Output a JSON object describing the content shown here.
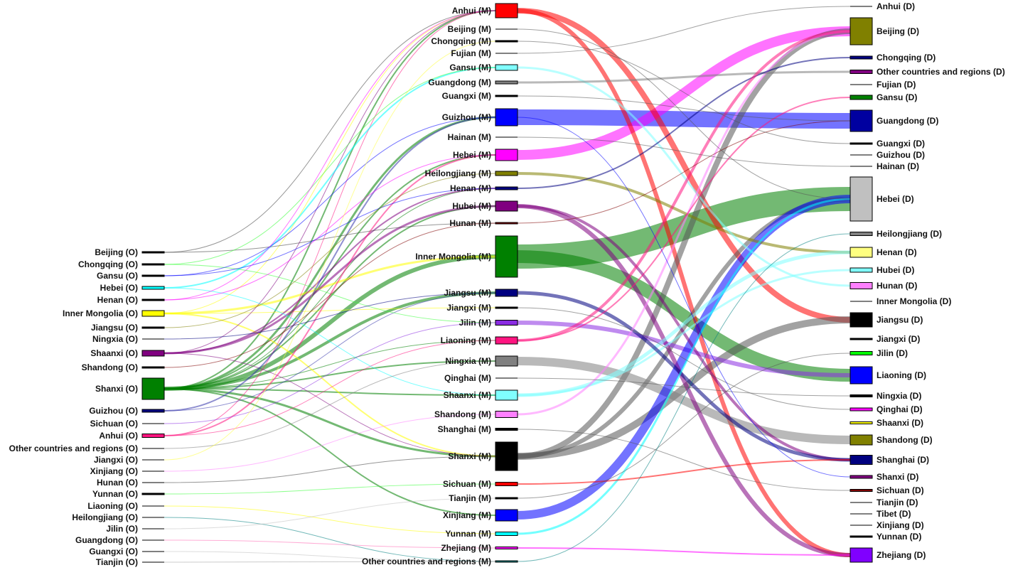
{
  "chart_data": {
    "type": "sankey",
    "title": "",
    "columns": [
      "origin",
      "middle",
      "destination"
    ],
    "origin_nodes": [
      {
        "name": "Beijing (O)",
        "color": "#000000",
        "link_color": "#404040",
        "value": 2
      },
      {
        "name": "Chongqing (O)",
        "color": "#000000",
        "link_color": "#33ff33",
        "value": 2
      },
      {
        "name": "Gansu (O)",
        "color": "#000000",
        "link_color": "#0000ff",
        "value": 2
      },
      {
        "name": "Hebei (O)",
        "color": "#00ffff",
        "link_color": "#00ffff",
        "value": 4
      },
      {
        "name": "Henan (O)",
        "color": "#000000",
        "link_color": "#ff00ff",
        "value": 2
      },
      {
        "name": "Inner Mongolia (O)",
        "color": "#ffff00",
        "link_color": "#ffff00",
        "value": 8
      },
      {
        "name": "Jiangsu (O)",
        "color": "#000000",
        "link_color": "#808000",
        "value": 2
      },
      {
        "name": "Ningxia (O)",
        "color": "#000000",
        "link_color": "#000080",
        "value": 1
      },
      {
        "name": "Shaanxi (O)",
        "color": "#800080",
        "link_color": "#800080",
        "value": 8
      },
      {
        "name": "Shandong (O)",
        "color": "#000000",
        "link_color": "#800000",
        "value": 2
      },
      {
        "name": "Shanxi (O)",
        "color": "#008000",
        "link_color": "#008000",
        "value": 30
      },
      {
        "name": "Guizhou (O)",
        "color": "#000080",
        "link_color": "#3333aa",
        "value": 4
      },
      {
        "name": "Sichuan (O)",
        "color": "#000000",
        "link_color": "#8a2be2",
        "value": 1
      },
      {
        "name": "Anhui (O)",
        "color": "#ff1480",
        "link_color": "#ff1480",
        "value": 5
      },
      {
        "name": "Other countries and regions (O)",
        "color": "#000000",
        "link_color": "#808080",
        "value": 1
      },
      {
        "name": "Jiangxi (O)",
        "color": "#000000",
        "link_color": "#ffff40",
        "value": 1
      },
      {
        "name": "Xinjiang (O)",
        "color": "#000000",
        "link_color": "#ff80ff",
        "value": 1
      },
      {
        "name": "Hunan (O)",
        "color": "#000000",
        "link_color": "#404040",
        "value": 1
      },
      {
        "name": "Yunnan (O)",
        "color": "#000000",
        "link_color": "#33ff33",
        "value": 2
      },
      {
        "name": "Liaoning (O)",
        "color": "#000000",
        "link_color": "#ffff00",
        "value": 1
      },
      {
        "name": "Heilongjiang (O)",
        "color": "#000000",
        "link_color": "#008080",
        "value": 1
      },
      {
        "name": "Jilin (O)",
        "color": "#000000",
        "link_color": "#c0c0c0",
        "value": 1
      },
      {
        "name": "Guangdong (O)",
        "color": "#000000",
        "link_color": "#ff69b4",
        "value": 1
      },
      {
        "name": "Guangxi (O)",
        "color": "#000000",
        "link_color": "#c0c0c0",
        "value": 1
      },
      {
        "name": "Tianjin (O)",
        "color": "#000000",
        "link_color": "#a0a0a0",
        "value": 1
      }
    ],
    "middle_nodes": [
      {
        "name": "Anhui (M)",
        "color": "#ff0000",
        "value": 20
      },
      {
        "name": "Beijing (M)",
        "color": "#000000",
        "value": 1
      },
      {
        "name": "Chongqing (M)",
        "color": "#000000",
        "value": 2
      },
      {
        "name": "Fujian (M)",
        "color": "#000000",
        "value": 1
      },
      {
        "name": "Gansu (M)",
        "color": "#80ffff",
        "value": 8
      },
      {
        "name": "Guangdong (M)",
        "color": "#808080",
        "value": 4
      },
      {
        "name": "Guangxi (M)",
        "color": "#000000",
        "value": 2
      },
      {
        "name": "Guizhou (M)",
        "color": "#0000ff",
        "value": 24
      },
      {
        "name": "Hainan (M)",
        "color": "#000000",
        "value": 1
      },
      {
        "name": "Hebei (M)",
        "color": "#ff00ff",
        "value": 16
      },
      {
        "name": "Heilongjiang (M)",
        "color": "#808000",
        "value": 6
      },
      {
        "name": "Henan (M)",
        "color": "#000080",
        "value": 4
      },
      {
        "name": "Hubei (M)",
        "color": "#800080",
        "value": 14
      },
      {
        "name": "Hunan (M)",
        "color": "#800000",
        "value": 2
      },
      {
        "name": "Inner Mongolia (M)",
        "color": "#008000",
        "value": 58
      },
      {
        "name": "Jiangsu (M)",
        "color": "#000080",
        "value": 10
      },
      {
        "name": "Jiangxi (M)",
        "color": "#000000",
        "value": 2
      },
      {
        "name": "Jilin (M)",
        "color": "#8a2be2",
        "value": 7
      },
      {
        "name": "Liaoning (M)",
        "color": "#ff1480",
        "value": 10
      },
      {
        "name": "Ningxia (M)",
        "color": "#808080",
        "value": 14
      },
      {
        "name": "Qinghai (M)",
        "color": "#000000",
        "value": 1
      },
      {
        "name": "Shaanxi (M)",
        "color": "#80ffff",
        "value": 14
      },
      {
        "name": "Shandong (M)",
        "color": "#ff80ff",
        "value": 9
      },
      {
        "name": "Shanghai (M)",
        "color": "#000000",
        "value": 3
      },
      {
        "name": "Shanxi (M)",
        "color": "#000000",
        "value": 40
      },
      {
        "name": "Sichuan (M)",
        "color": "#ff0000",
        "value": 5
      },
      {
        "name": "Tianjin (M)",
        "color": "#000000",
        "value": 2
      },
      {
        "name": "Xinjiang (M)",
        "color": "#0000ff",
        "value": 16
      },
      {
        "name": "Yunnan (M)",
        "color": "#00ffff",
        "value": 5
      },
      {
        "name": "Zhejiang (M)",
        "color": "#ff00ff",
        "value": 3
      },
      {
        "name": "Other countries and regions (M)",
        "color": "#008080",
        "value": 2
      }
    ],
    "destination_nodes": [
      {
        "name": "Anhui (D)",
        "color": "#000000",
        "value": 1
      },
      {
        "name": "Beijing (D)",
        "color": "#808000",
        "value": 38
      },
      {
        "name": "Chongqing (D)",
        "color": "#000080",
        "value": 4
      },
      {
        "name": "Other countries and regions (D)",
        "color": "#800080",
        "value": 5
      },
      {
        "name": "Fujian (D)",
        "color": "#000000",
        "value": 1
      },
      {
        "name": "Gansu (D)",
        "color": "#008000",
        "value": 6
      },
      {
        "name": "Guangdong (D)",
        "color": "#0000a0",
        "value": 30
      },
      {
        "name": "Guangxi (D)",
        "color": "#000000",
        "value": 2
      },
      {
        "name": "Guizhou (D)",
        "color": "#000000",
        "value": 1
      },
      {
        "name": "Hainan (D)",
        "color": "#000000",
        "value": 1
      },
      {
        "name": "Hebei (D)",
        "color": "#c0c0c0",
        "value": 62
      },
      {
        "name": "Heilongjiang (D)",
        "color": "#808080",
        "value": 5
      },
      {
        "name": "Henan (D)",
        "color": "#ffff80",
        "value": 14
      },
      {
        "name": "Hubei (D)",
        "color": "#80ffff",
        "value": 6
      },
      {
        "name": "Hunan (D)",
        "color": "#ff80ff",
        "value": 9
      },
      {
        "name": "Inner Mongolia (D)",
        "color": "#000000",
        "value": 1
      },
      {
        "name": "Jiangsu (D)",
        "color": "#000000",
        "value": 20
      },
      {
        "name": "Jiangxi (D)",
        "color": "#000000",
        "value": 2
      },
      {
        "name": "Jilin (D)",
        "color": "#00ff00",
        "value": 5
      },
      {
        "name": "Liaoning (D)",
        "color": "#0000ff",
        "value": 24
      },
      {
        "name": "Ningxia (D)",
        "color": "#000000",
        "value": 3
      },
      {
        "name": "Qinghai (D)",
        "color": "#ff00ff",
        "value": 4
      },
      {
        "name": "Shaanxi (D)",
        "color": "#ffff00",
        "value": 3
      },
      {
        "name": "Shandong (D)",
        "color": "#808000",
        "value": 14
      },
      {
        "name": "Shanghai (D)",
        "color": "#000080",
        "value": 13
      },
      {
        "name": "Shanxi (D)",
        "color": "#800080",
        "value": 4
      },
      {
        "name": "Sichuan (D)",
        "color": "#800000",
        "value": 3
      },
      {
        "name": "Tianjin (D)",
        "color": "#000000",
        "value": 1
      },
      {
        "name": "Tibet (D)",
        "color": "#000000",
        "value": 1
      },
      {
        "name": "Xinjiang (D)",
        "color": "#000000",
        "value": 1
      },
      {
        "name": "Yunnan (D)",
        "color": "#000000",
        "value": 2
      },
      {
        "name": "Zhejiang (D)",
        "color": "#8000ff",
        "value": 20
      }
    ],
    "links_om": [
      [
        "Shanxi (O)",
        "Inner Mongolia (M)",
        6
      ],
      [
        "Shanxi (O)",
        "Jiangsu (M)",
        4
      ],
      [
        "Shanxi (O)",
        "Shanxi (M)",
        3
      ],
      [
        "Shanxi (O)",
        "Guizhou (M)",
        3
      ],
      [
        "Shanxi (O)",
        "Hebei (M)",
        2
      ],
      [
        "Shanxi (O)",
        "Anhui (M)",
        2
      ],
      [
        "Shanxi (O)",
        "Hubei (M)",
        2
      ],
      [
        "Shanxi (O)",
        "Xinjiang (M)",
        2
      ],
      [
        "Shanxi (O)",
        "Ningxia (M)",
        2
      ],
      [
        "Shanxi (O)",
        "Shaanxi (M)",
        2
      ],
      [
        "Shanxi (O)",
        "Liaoning (M)",
        1
      ],
      [
        "Shanxi (O)",
        "Henan (M)",
        1
      ],
      [
        "Inner Mongolia (O)",
        "Inner Mongolia (M)",
        3
      ],
      [
        "Inner Mongolia (O)",
        "Jiangxi (M)",
        1
      ],
      [
        "Inner Mongolia (O)",
        "Shanxi (M)",
        2
      ],
      [
        "Inner Mongolia (O)",
        "Anhui (M)",
        1
      ],
      [
        "Shaanxi (O)",
        "Hubei (M)",
        3
      ],
      [
        "Shaanxi (O)",
        "Anhui (M)",
        1
      ],
      [
        "Shaanxi (O)",
        "Henan (M)",
        2
      ],
      [
        "Shaanxi (O)",
        "Shanxi (M)",
        1
      ],
      [
        "Anhui (O)",
        "Hebei (M)",
        2
      ],
      [
        "Anhui (O)",
        "Liaoning (M)",
        1
      ],
      [
        "Anhui (O)",
        "Anhui (M)",
        1
      ],
      [
        "Guizhou (O)",
        "Guizhou (M)",
        2
      ],
      [
        "Guizhou (O)",
        "Jiangsu (M)",
        1
      ],
      [
        "Hebei (O)",
        "Gansu (M)",
        2
      ],
      [
        "Hebei (O)",
        "Shaanxi (M)",
        1
      ],
      [
        "Beijing (O)",
        "Anhui (M)",
        1
      ],
      [
        "Beijing (O)",
        "Hunan (M)",
        1
      ],
      [
        "Chongqing (O)",
        "Jilin (M)",
        1
      ],
      [
        "Chongqing (O)",
        "Gansu (M)",
        1
      ],
      [
        "Gansu (O)",
        "Guizhou (M)",
        1
      ],
      [
        "Gansu (O)",
        "Henan (M)",
        1
      ],
      [
        "Henan (O)",
        "Hebei (M)",
        1
      ],
      [
        "Henan (O)",
        "Anhui (M)",
        1
      ],
      [
        "Jiangsu (O)",
        "Heilongjiang (M)",
        1
      ],
      [
        "Ningxia (O)",
        "Jiangsu (M)",
        1
      ],
      [
        "Shandong (O)",
        "Hunan (M)",
        1
      ],
      [
        "Sichuan (O)",
        "Jilin (M)",
        1
      ],
      [
        "Other countries and regions (O)",
        "Ningxia (M)",
        1
      ],
      [
        "Jiangxi (O)",
        "Chongqing (M)",
        1
      ],
      [
        "Xinjiang (O)",
        "Shandong (M)",
        1
      ],
      [
        "Hunan (O)",
        "Shanxi (M)",
        1
      ],
      [
        "Yunnan (O)",
        "Sichuan (M)",
        1
      ],
      [
        "Liaoning (O)",
        "Yunnan (M)",
        1
      ],
      [
        "Heilongjiang (O)",
        "Other countries and regions (M)",
        1
      ],
      [
        "Jilin (O)",
        "Tianjin (M)",
        1
      ],
      [
        "Guangdong (O)",
        "Zhejiang (M)",
        1
      ],
      [
        "Guangxi (O)",
        "Other countries and regions (M)",
        1
      ],
      [
        "Tianjin (O)",
        "Other countries and regions (M)",
        1
      ]
    ],
    "links_md": [
      [
        "Guizhou (M)",
        "Guangdong (D)",
        22
      ],
      [
        "Inner Mongolia (M)",
        "Hebei (D)",
        34
      ],
      [
        "Inner Mongolia (M)",
        "Liaoning (D)",
        18
      ],
      [
        "Hebei (M)",
        "Beijing (D)",
        14
      ],
      [
        "Anhui (M)",
        "Jiangsu (D)",
        8
      ],
      [
        "Anhui (M)",
        "Zhejiang (D)",
        6
      ],
      [
        "Shanxi (M)",
        "Jiangsu (D)",
        10
      ],
      [
        "Shanxi (M)",
        "Beijing (D)",
        8
      ],
      [
        "Shanxi (M)",
        "Hebei (D)",
        6
      ],
      [
        "Ningxia (M)",
        "Shandong (D)",
        12
      ],
      [
        "Jilin (M)",
        "Liaoning (D)",
        6
      ],
      [
        "Xinjiang (M)",
        "Hebei (D)",
        12
      ],
      [
        "Hubei (M)",
        "Zhejiang (D)",
        6
      ],
      [
        "Hubei (M)",
        "Shanghai (D)",
        4
      ],
      [
        "Heilongjiang (M)",
        "Henan (D)",
        4
      ],
      [
        "Gansu (M)",
        "Hunan (D)",
        3
      ],
      [
        "Shaanxi (M)",
        "Henan (D)",
        5
      ],
      [
        "Shaanxi (M)",
        "Hubei (D)",
        3
      ],
      [
        "Jiangsu (M)",
        "Shanghai (D)",
        5
      ],
      [
        "Shandong (M)",
        "Beijing (D)",
        3
      ],
      [
        "Guangdong (M)",
        "Other countries and regions (D)",
        3
      ],
      [
        "Henan (M)",
        "Chongqing (D)",
        2
      ],
      [
        "Liaoning (M)",
        "Beijing (D)",
        4
      ],
      [
        "Liaoning (M)",
        "Gansu (D)",
        2
      ],
      [
        "Yunnan (M)",
        "Hebei (D)",
        3
      ],
      [
        "Sichuan (M)",
        "Shanghai (D)",
        2
      ],
      [
        "Zhejiang (M)",
        "Zhejiang (D)",
        2
      ],
      [
        "Hunan (M)",
        "Guangdong (D)",
        1
      ],
      [
        "Guangxi (M)",
        "Guangdong (D)",
        1
      ],
      [
        "Chongqing (M)",
        "Guangxi (D)",
        1
      ],
      [
        "Beijing (M)",
        "Hebei (D)",
        1
      ],
      [
        "Jiangxi (M)",
        "Qinghai (D)",
        1
      ],
      [
        "Tianjin (M)",
        "Jilin (D)",
        1
      ],
      [
        "Other countries and regions (M)",
        "Heilongjiang (D)",
        1
      ],
      [
        "Shanghai (M)",
        "Sichuan (D)",
        1
      ],
      [
        "Hainan (M)",
        "Hainan (D)",
        1
      ],
      [
        "Fujian (M)",
        "Anhui (D)",
        1
      ],
      [
        "Qinghai (M)",
        "Ningxia (D)",
        1
      ],
      [
        "Guizhou (M)",
        "Shanxi (D)",
        1
      ]
    ]
  }
}
